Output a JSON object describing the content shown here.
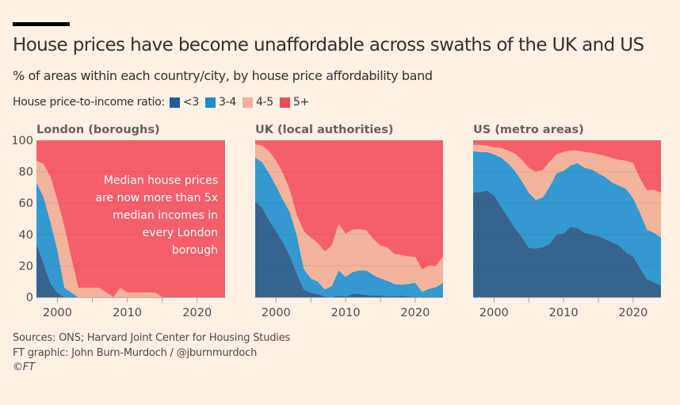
{
  "header": {
    "title": "House prices have become unaffordable across swaths of the UK and US",
    "subtitle": "% of areas within each country/city, by house price affordability band"
  },
  "legend": {
    "title": "House price-to-income ratio:",
    "items": [
      {
        "label": "<3",
        "color": "#1f5c99"
      },
      {
        "label": "3-4",
        "color": "#1e8bcd"
      },
      {
        "label": "4-5",
        "color": "#f2b196"
      },
      {
        "label": "5+",
        "color": "#ef4a5a"
      }
    ]
  },
  "footer": {
    "sources": "Sources: ONS; Harvard Joint Center for Housing Studies",
    "credit": "FT graphic: John Burn-Murdoch / @jburnmurdoch",
    "copyright": "©FT"
  },
  "chart_data": [
    {
      "type": "area",
      "stacked": true,
      "title": "London (boroughs)",
      "xlabel": "",
      "ylabel": "",
      "xlim": [
        1997,
        2024
      ],
      "ylim": [
        0,
        100
      ],
      "yticks": [
        0,
        20,
        40,
        60,
        80,
        100
      ],
      "xticks": [
        2000,
        2010,
        2020
      ],
      "grid": true,
      "annotation": [
        "Median house prices",
        "are now more than 5x",
        "median incomes in",
        "every London",
        "borough"
      ],
      "x": [
        1997,
        1998,
        1999,
        2000,
        2001,
        2002,
        2003,
        2004,
        2005,
        2006,
        2007,
        2008,
        2009,
        2010,
        2011,
        2012,
        2013,
        2014,
        2015,
        2016,
        2017,
        2018,
        2019,
        2020,
        2021,
        2022,
        2023,
        2024
      ],
      "series": [
        {
          "name": "<3",
          "values": [
            34,
            22,
            9,
            3,
            0,
            0,
            0,
            0,
            0,
            0,
            0,
            0,
            0,
            0,
            0,
            0,
            0,
            0,
            0,
            0,
            0,
            0,
            0,
            0,
            0,
            0,
            0,
            0
          ]
        },
        {
          "name": "3-4",
          "values": [
            39,
            42,
            39,
            27,
            6,
            3,
            0,
            0,
            0,
            0,
            0,
            0,
            0,
            0,
            0,
            0,
            0,
            0,
            0,
            0,
            0,
            0,
            0,
            0,
            0,
            0,
            0,
            0
          ]
        },
        {
          "name": "4-5",
          "values": [
            14,
            21,
            29,
            32,
            39,
            22,
            6,
            6,
            6,
            6,
            3,
            0,
            6,
            3,
            3,
            3,
            3,
            3,
            0,
            0,
            0,
            0,
            0,
            0,
            0,
            0,
            0,
            0
          ]
        },
        {
          "name": "5+",
          "values": [
            13,
            15,
            23,
            38,
            55,
            75,
            94,
            94,
            94,
            94,
            97,
            100,
            94,
            97,
            97,
            97,
            97,
            97,
            100,
            100,
            100,
            100,
            100,
            100,
            100,
            100,
            100,
            100
          ]
        }
      ]
    },
    {
      "type": "area",
      "stacked": true,
      "title": "UK (local authorities)",
      "xlabel": "",
      "ylabel": "",
      "xlim": [
        1997,
        2024
      ],
      "ylim": [
        0,
        100
      ],
      "xticks": [
        2000,
        2010,
        2020
      ],
      "grid": true,
      "x": [
        1997,
        1998,
        1999,
        2000,
        2001,
        2002,
        2003,
        2004,
        2005,
        2006,
        2007,
        2008,
        2009,
        2010,
        2011,
        2012,
        2013,
        2014,
        2015,
        2016,
        2017,
        2018,
        2019,
        2020,
        2021,
        2022,
        2023,
        2024
      ],
      "series": [
        {
          "name": "<3",
          "values": [
            61,
            57,
            49,
            42,
            35,
            26,
            15,
            5,
            3,
            2,
            0.5,
            0,
            1,
            0.5,
            2,
            2,
            1.5,
            1,
            1,
            0.5,
            0.5,
            1,
            0.5,
            0.3,
            0,
            0,
            0,
            0
          ]
        },
        {
          "name": "3-4",
          "values": [
            28,
            29,
            30,
            29,
            27,
            28,
            24,
            13,
            9,
            8,
            4.5,
            7,
            16,
            12.5,
            14,
            15,
            15.5,
            13,
            11,
            10,
            8,
            7,
            8,
            9,
            3.4,
            5.4,
            6.4,
            9.3
          ]
        },
        {
          "name": "4-5",
          "values": [
            8.5,
            10.6,
            14,
            16,
            17,
            14,
            13,
            24,
            26,
            24.5,
            24,
            26,
            29.6,
            27.4,
            27,
            26.4,
            25.6,
            23,
            21,
            21.2,
            19,
            19,
            17.5,
            16.3,
            14.3,
            14.8,
            13.5,
            16.7
          ]
        },
        {
          "name": "5+",
          "values": [
            2.5,
            3.4,
            7,
            13,
            21,
            32,
            48,
            58,
            62,
            65.5,
            71,
            67,
            53.4,
            59.6,
            57,
            56.6,
            57.4,
            63,
            67,
            68.3,
            72.5,
            73,
            74,
            74.4,
            82.3,
            79.8,
            80.1,
            74
          ]
        }
      ]
    },
    {
      "type": "area",
      "stacked": true,
      "title": "US (metro areas)",
      "xlabel": "",
      "ylabel": "",
      "xlim": [
        1997,
        2024
      ],
      "ylim": [
        0,
        100
      ],
      "xticks": [
        2000,
        2010,
        2020
      ],
      "grid": true,
      "x": [
        1997,
        1998,
        1999,
        2000,
        2001,
        2002,
        2003,
        2004,
        2005,
        2006,
        2007,
        2008,
        2009,
        2010,
        2011,
        2012,
        2013,
        2014,
        2015,
        2016,
        2017,
        2018,
        2019,
        2020,
        2021,
        2022,
        2023,
        2024
      ],
      "series": [
        {
          "name": "<3",
          "values": [
            67,
            67,
            68,
            65,
            58,
            51,
            44,
            38.5,
            31.5,
            31,
            32,
            34,
            40,
            40.5,
            45,
            44,
            41,
            40,
            39,
            37,
            35,
            33,
            28.5,
            26,
            18.5,
            11.5,
            9.5,
            7.5
          ]
        },
        {
          "name": "3-4",
          "values": [
            26,
            25.5,
            24.5,
            26,
            31,
            34.5,
            36.5,
            35.5,
            35,
            31,
            31.5,
            36.5,
            39,
            40,
            39,
            41.5,
            41.5,
            41.5,
            40,
            39.5,
            38,
            38,
            40.5,
            37,
            35,
            31.5,
            31.5,
            30.5
          ]
        },
        {
          "name": "4-5",
          "values": [
            4,
            4.5,
            4,
            4.5,
            6,
            8,
            11,
            13.5,
            16,
            18,
            17.5,
            16,
            12,
            12,
            9.5,
            8,
            10,
            10.5,
            12,
            13.5,
            15.5,
            16.5,
            18,
            22.5,
            22,
            25,
            27.5,
            28.5
          ]
        },
        {
          "name": "5+",
          "values": [
            3,
            3,
            3.5,
            4.5,
            5,
            6.5,
            8.5,
            12.5,
            17.5,
            20,
            19,
            13.5,
            9,
            7.5,
            6.5,
            6.5,
            7.5,
            8,
            9,
            10,
            11.5,
            12.5,
            13,
            14.5,
            24.5,
            32,
            31.5,
            33.5
          ]
        }
      ]
    }
  ]
}
